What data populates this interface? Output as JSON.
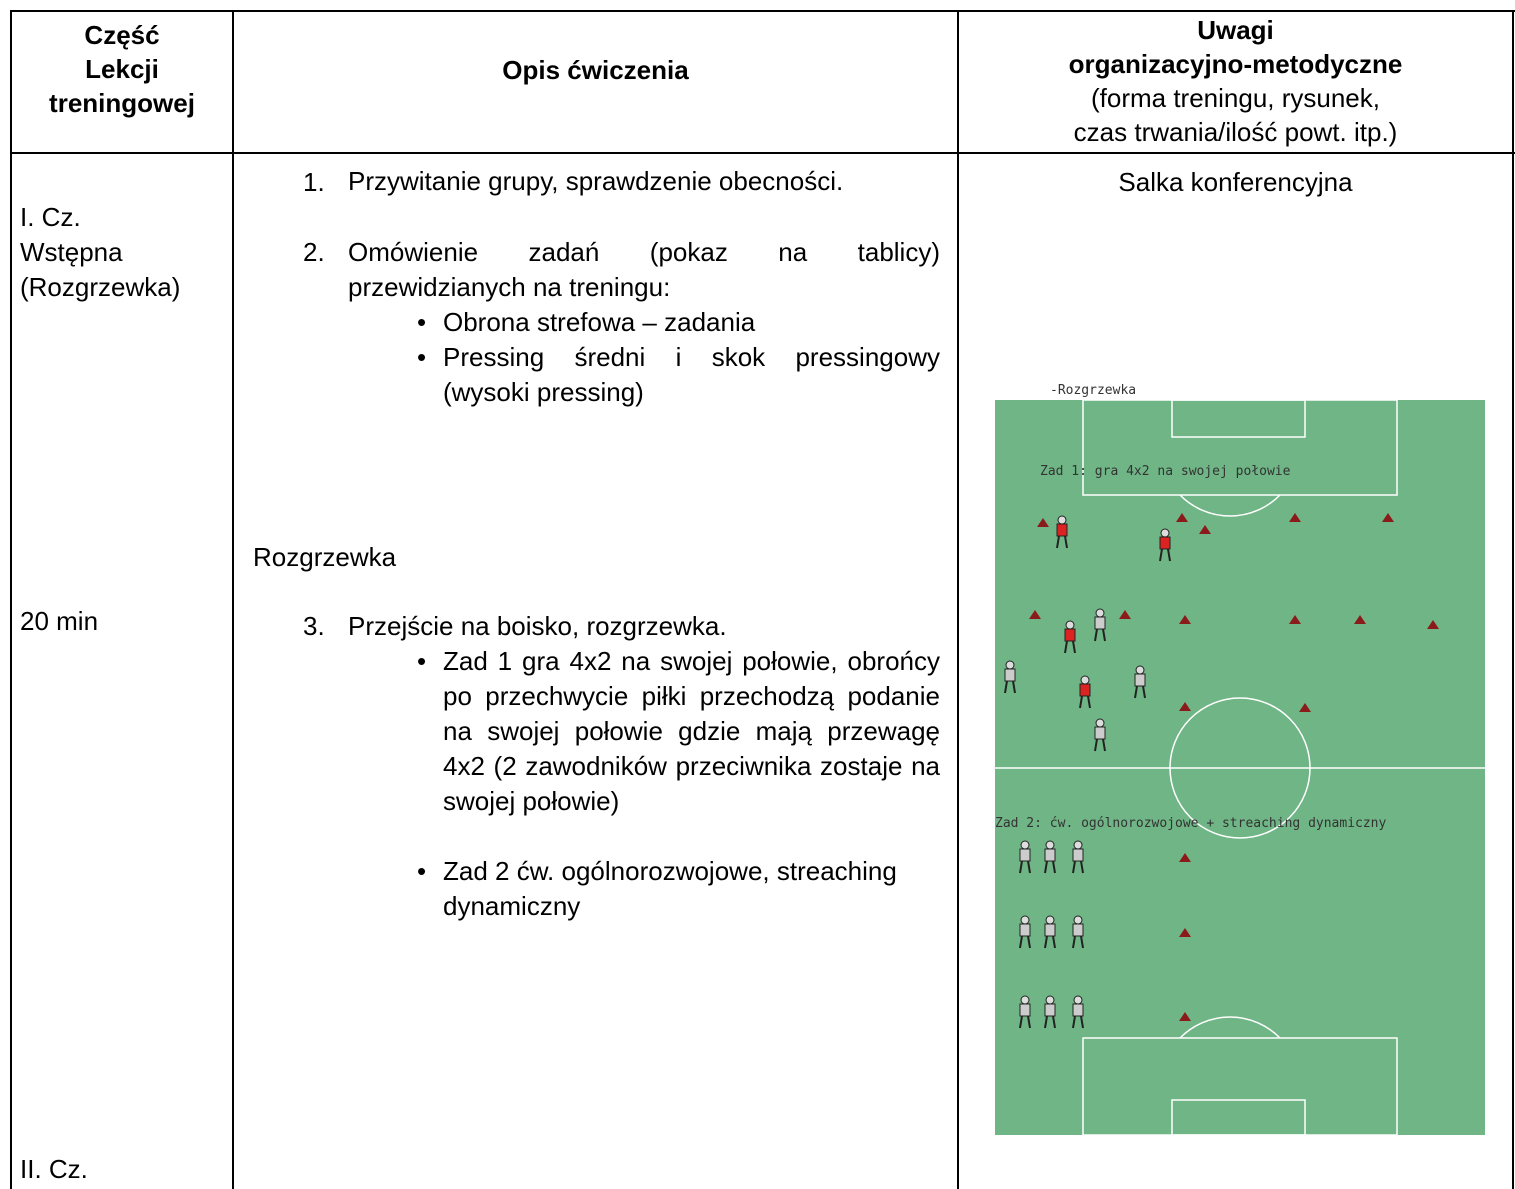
{
  "table": {
    "header": {
      "part": [
        "Część",
        "Lekcji",
        "treningowej"
      ],
      "description": "Opis ćwiczenia",
      "notes_title": [
        "Uwagi",
        "organizacyjno-metodyczne"
      ],
      "notes_sub": [
        "(forma treningu, rysunek,",
        "czas trwania/ilość powt. itp.)"
      ]
    },
    "body": {
      "part": {
        "intro": [
          "I. Cz.",
          "Wstępna",
          "(Rozgrzewka)"
        ],
        "time": "20 min",
        "next": "II. Cz."
      },
      "description": {
        "items": [
          {
            "number": "1.",
            "text": "Przywitanie grupy, sprawdzenie obecności."
          },
          {
            "number": "2.",
            "text": "Omówienie zadań (pokaz na tablicy) przewidzianych na treningu:",
            "bullets": [
              "Obrona strefowa – zadania",
              "Pressing średni i skok pressingowy (wysoki pressing)"
            ]
          }
        ],
        "section": "Rozgrzewka",
        "items2": [
          {
            "number": "3.",
            "text": "Przejście na boisko, rozgrzewka.",
            "bullets": [
              "Zad 1 gra 4x2 na swojej połowie, obrońcy po przechwycie piłki przechodzą podanie na swojej połowie gdzie mają przewagę 4x2 (2 zawodników przeciwnika zostaje na swojej połowie)",
              "Zad 2 ćw. ogólnorozwojowe, streaching dynamiczny"
            ]
          }
        ]
      },
      "notes": {
        "place": "Salka konferencyjna",
        "diagram": {
          "title": "-Rozgrzewka",
          "task1": "Zad 1: gra 4x2 na swojej połowie",
          "task2": "Zad 2: ćw. ogólnorozwojowe + streaching dynamiczny"
        }
      }
    }
  }
}
